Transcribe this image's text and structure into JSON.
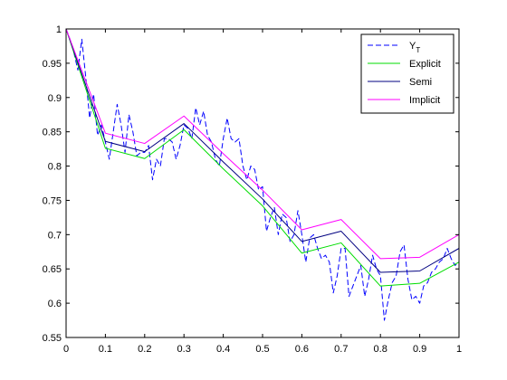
{
  "chart_data": {
    "type": "line",
    "title": "",
    "xlabel": "",
    "ylabel": "",
    "xlim": [
      0,
      1
    ],
    "ylim": [
      0.55,
      1
    ],
    "xticks": [
      "0",
      "0.1",
      "0.2",
      "0.3",
      "0.4",
      "0.5",
      "0.6",
      "0.7",
      "0.8",
      "0.9",
      "1"
    ],
    "yticks": [
      "0.55",
      "0.6",
      "0.65",
      "0.7",
      "0.75",
      "0.8",
      "0.85",
      "0.9",
      "0.95",
      "1"
    ],
    "grid": false,
    "legend_position": "top-right",
    "series": [
      {
        "name": "Y",
        "name_subscript": "T",
        "color": "#0000ff",
        "style": "dashed",
        "x": [
          0,
          0.01,
          0.02,
          0.03,
          0.04,
          0.05,
          0.06,
          0.07,
          0.08,
          0.09,
          0.1,
          0.11,
          0.12,
          0.13,
          0.14,
          0.15,
          0.16,
          0.17,
          0.18,
          0.19,
          0.2,
          0.21,
          0.22,
          0.23,
          0.24,
          0.25,
          0.26,
          0.27,
          0.28,
          0.29,
          0.3,
          0.31,
          0.32,
          0.33,
          0.34,
          0.35,
          0.36,
          0.37,
          0.38,
          0.39,
          0.4,
          0.41,
          0.42,
          0.43,
          0.44,
          0.45,
          0.46,
          0.47,
          0.48,
          0.49,
          0.5,
          0.51,
          0.52,
          0.53,
          0.54,
          0.55,
          0.56,
          0.57,
          0.58,
          0.59,
          0.6,
          0.61,
          0.62,
          0.63,
          0.64,
          0.65,
          0.66,
          0.67,
          0.68,
          0.69,
          0.7,
          0.71,
          0.72,
          0.73,
          0.74,
          0.75,
          0.76,
          0.77,
          0.78,
          0.79,
          0.8,
          0.81,
          0.82,
          0.83,
          0.84,
          0.85,
          0.86,
          0.87,
          0.88,
          0.89,
          0.9,
          0.91,
          0.92,
          0.93,
          0.94,
          0.95,
          0.96,
          0.97,
          0.98,
          0.99,
          1.0
        ],
        "values": [
          1.0,
          0.985,
          0.965,
          0.94,
          0.985,
          0.93,
          0.87,
          0.905,
          0.845,
          0.86,
          0.835,
          0.81,
          0.85,
          0.89,
          0.86,
          0.82,
          0.875,
          0.85,
          0.815,
          0.82,
          0.82,
          0.83,
          0.78,
          0.81,
          0.8,
          0.84,
          0.84,
          0.835,
          0.81,
          0.83,
          0.86,
          0.855,
          0.84,
          0.885,
          0.86,
          0.88,
          0.845,
          0.835,
          0.81,
          0.8,
          0.84,
          0.87,
          0.84,
          0.835,
          0.84,
          0.8,
          0.78,
          0.8,
          0.795,
          0.765,
          0.77,
          0.705,
          0.725,
          0.74,
          0.7,
          0.73,
          0.725,
          0.69,
          0.7,
          0.735,
          0.7,
          0.66,
          0.695,
          0.7,
          0.68,
          0.665,
          0.67,
          0.66,
          0.615,
          0.64,
          0.68,
          0.68,
          0.61,
          0.625,
          0.64,
          0.655,
          0.61,
          0.635,
          0.67,
          0.65,
          0.64,
          0.575,
          0.605,
          0.63,
          0.64,
          0.675,
          0.685,
          0.635,
          0.605,
          0.61,
          0.6,
          0.625,
          0.63,
          0.645,
          0.65,
          0.66,
          0.665,
          0.68,
          0.665,
          0.655,
          0.66
        ]
      },
      {
        "name": "Explicit",
        "color": "#00dd00",
        "style": "solid",
        "x": [
          0,
          0.1,
          0.2,
          0.3,
          0.4,
          0.5,
          0.6,
          0.7,
          0.8,
          0.9,
          1.0
        ],
        "values": [
          1.0,
          0.826,
          0.811,
          0.853,
          0.796,
          0.742,
          0.673,
          0.688,
          0.625,
          0.629,
          0.66
        ]
      },
      {
        "name": "Semi",
        "color": "#000080",
        "style": "solid",
        "x": [
          0,
          0.1,
          0.2,
          0.3,
          0.4,
          0.5,
          0.6,
          0.7,
          0.8,
          0.9,
          1.0
        ],
        "values": [
          1.0,
          0.836,
          0.821,
          0.862,
          0.806,
          0.752,
          0.69,
          0.705,
          0.645,
          0.647,
          0.68
        ]
      },
      {
        "name": "Implicit",
        "color": "#ff00ff",
        "style": "solid",
        "x": [
          0,
          0.1,
          0.2,
          0.3,
          0.4,
          0.5,
          0.6,
          0.7,
          0.8,
          0.9,
          1.0
        ],
        "values": [
          1.0,
          0.848,
          0.833,
          0.873,
          0.818,
          0.765,
          0.707,
          0.722,
          0.665,
          0.667,
          0.7
        ]
      }
    ]
  }
}
